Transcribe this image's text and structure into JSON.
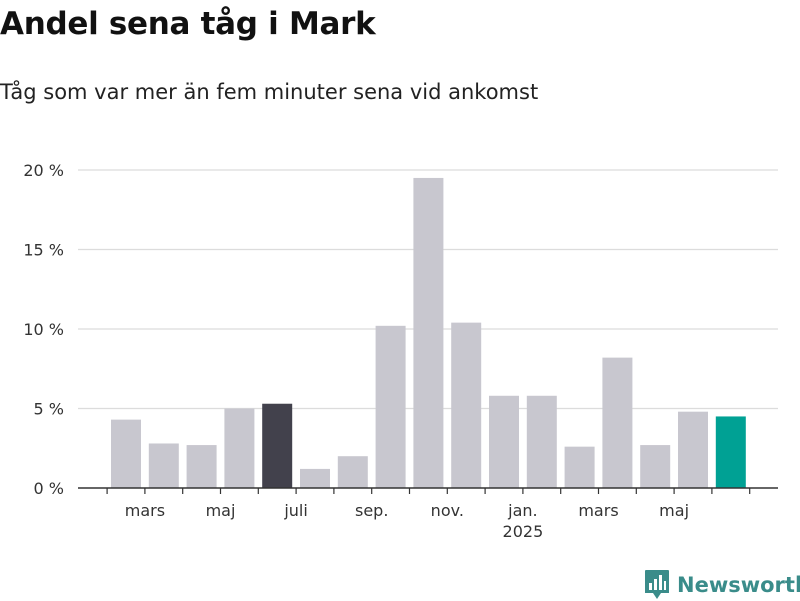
{
  "title": "Andel sena tåg i Mark",
  "subtitle": "Tåg som var mer än fem minuter sena vid ankomst",
  "brand": {
    "name": "Newsworthy",
    "color": "#3a8c8a",
    "icon": "newsworthy-bar-chart-icon"
  },
  "colors": {
    "bar": "#c8c7cf",
    "highlight": "#42414c",
    "latest": "#00a194",
    "grid": "#dcdcdc",
    "axis": "#333333"
  },
  "chart_data": {
    "type": "bar",
    "title": "Andel sena tåg i Mark",
    "subtitle": "Tåg som var mer än fem minuter sena vid ankomst",
    "xlabel": "",
    "ylabel": "",
    "ylim": [
      0,
      20
    ],
    "grid": true,
    "yticks": [
      0,
      5,
      10,
      15,
      20
    ],
    "ytick_labels": [
      "0 %",
      "5 %",
      "10 %",
      "15 %",
      "20 %"
    ],
    "categories": [
      "2024-02",
      "2024-03",
      "2024-04",
      "2024-05",
      "2024-06",
      "2024-07",
      "2024-08",
      "2024-09",
      "2024-10",
      "2024-11",
      "2024-12",
      "2025-01",
      "2025-02",
      "2025-03",
      "2025-04",
      "2025-05",
      "2025-06"
    ],
    "values": [
      4.3,
      2.8,
      2.7,
      5.0,
      5.3,
      1.2,
      2.0,
      10.2,
      19.5,
      10.4,
      5.8,
      5.8,
      2.6,
      8.2,
      2.7,
      4.8,
      4.5
    ],
    "highlight_index": 4,
    "latest_index": 16,
    "x_tick_labels": [
      {
        "category": "2024-03",
        "label": "mars"
      },
      {
        "category": "2024-05",
        "label": "maj"
      },
      {
        "category": "2024-07",
        "label": "juli"
      },
      {
        "category": "2024-09",
        "label": "sep."
      },
      {
        "category": "2024-11",
        "label": "nov."
      },
      {
        "category": "2025-01",
        "label": "jan.",
        "sublabel": "2025"
      },
      {
        "category": "2025-03",
        "label": "mars"
      },
      {
        "category": "2025-05",
        "label": "maj"
      }
    ]
  }
}
